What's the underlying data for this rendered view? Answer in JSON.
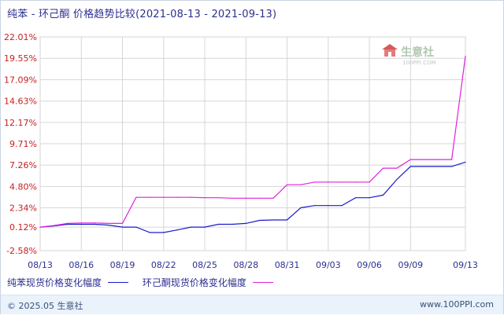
{
  "title": "纯苯 - 环己酮 价格趋势比较(2021-08-13 - 2021-09-13)",
  "watermark": {
    "brand": "生意社",
    "url": "100PPI.COM"
  },
  "footer": {
    "copyright": "© 2025.05 生意社",
    "site": "www.100PPI.com"
  },
  "colors": {
    "series1": "#1a1acc",
    "series2": "#e020e0",
    "grid": "#d6d6d6",
    "axis_text": "#c81e1e",
    "xaxis_text": "#2b2f8f"
  },
  "chart_data": {
    "type": "line",
    "title": "纯苯 - 环己酮 价格趋势比较(2021-08-13 - 2021-09-13)",
    "xlabel": "",
    "ylabel": "",
    "x": [
      "08/13",
      "08/14",
      "08/15",
      "08/16",
      "08/17",
      "08/18",
      "08/19",
      "08/20",
      "08/21",
      "08/22",
      "08/23",
      "08/24",
      "08/25",
      "08/26",
      "08/27",
      "08/28",
      "08/29",
      "08/30",
      "08/31",
      "09/01",
      "09/02",
      "09/03",
      "09/04",
      "09/05",
      "09/06",
      "09/07",
      "09/08",
      "09/09",
      "09/10",
      "09/11",
      "09/12",
      "09/13"
    ],
    "xticks": [
      "08/13",
      "08/16",
      "08/19",
      "08/22",
      "08/25",
      "08/28",
      "08/31",
      "09/03",
      "09/06",
      "09/09",
      "09/13"
    ],
    "yticks": [
      "-2.58%",
      "0.12%",
      "2.34%",
      "4.80%",
      "7.26%",
      "9.71%",
      "12.17%",
      "14.63%",
      "17.09%",
      "19.55%",
      "22.01%"
    ],
    "ylim": [
      -2.58,
      22.01
    ],
    "grid": true,
    "legend_position": "bottom-left",
    "series": [
      {
        "name": "纯苯现货价格变化幅度",
        "color": "#1a1acc",
        "values": [
          0.12,
          0.25,
          0.45,
          0.45,
          0.45,
          0.35,
          0.12,
          0.12,
          -0.5,
          -0.5,
          -0.2,
          0.12,
          0.12,
          0.45,
          0.45,
          0.55,
          0.9,
          0.95,
          0.95,
          2.35,
          2.6,
          2.6,
          2.6,
          3.5,
          3.5,
          3.8,
          5.6,
          7.1,
          7.1,
          7.1,
          7.1,
          7.6
        ]
      },
      {
        "name": "环己酮现货价格变化幅度",
        "color": "#e020e0",
        "values": [
          0.12,
          0.3,
          0.55,
          0.6,
          0.6,
          0.55,
          0.55,
          3.55,
          3.55,
          3.55,
          3.55,
          3.55,
          3.5,
          3.5,
          3.45,
          3.45,
          3.45,
          3.45,
          5.0,
          5.0,
          5.3,
          5.3,
          5.3,
          5.3,
          5.3,
          6.9,
          6.9,
          7.9,
          7.9,
          7.9,
          7.9,
          19.8
        ]
      }
    ]
  }
}
